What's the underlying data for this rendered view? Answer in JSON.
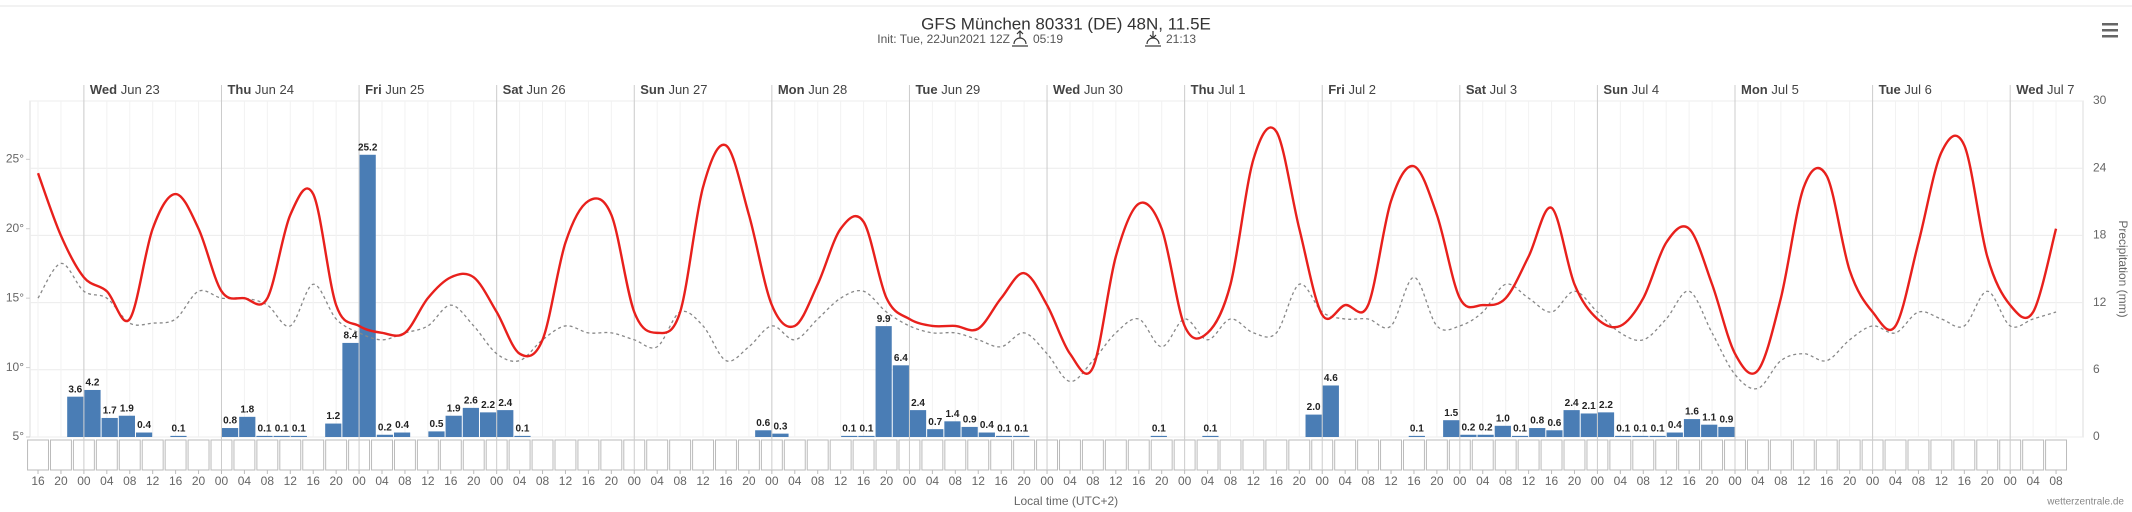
{
  "chart_data": {
    "type": "line",
    "title": "GFS München 80331 (DE) 48N, 11.5E",
    "subtitle": "Init: Tue, 22Jun2021 12Z",
    "sunrise": "05:19",
    "sunset": "21:13",
    "x_label": "Local time (UTC+2)",
    "y2_label": "Precipitation (mm)",
    "credit": "wetterzentrale.de",
    "days": [
      {
        "day": "Wed",
        "date": "Jun 23"
      },
      {
        "day": "Thu",
        "date": "Jun 24"
      },
      {
        "day": "Fri",
        "date": "Jun 25"
      },
      {
        "day": "Sat",
        "date": "Jun 26"
      },
      {
        "day": "Sun",
        "date": "Jun 27"
      },
      {
        "day": "Mon",
        "date": "Jun 28"
      },
      {
        "day": "Tue",
        "date": "Jun 29"
      },
      {
        "day": "Wed",
        "date": "Jun 30"
      },
      {
        "day": "Thu",
        "date": "Jul 1"
      },
      {
        "day": "Fri",
        "date": "Jul 2"
      },
      {
        "day": "Sat",
        "date": "Jul 3"
      },
      {
        "day": "Sun",
        "date": "Jul 4"
      },
      {
        "day": "Mon",
        "date": "Jul 5"
      },
      {
        "day": "Tue",
        "date": "Jul 6"
      },
      {
        "day": "Wed",
        "date": "Jul 7"
      }
    ],
    "xlim": [
      -9.4,
      348.7
    ],
    "xticks": [
      {
        "value": -8,
        "label": "16"
      },
      {
        "value": -4,
        "label": "20"
      },
      {
        "value": 0,
        "label": "00"
      },
      {
        "value": 4,
        "label": "04"
      },
      {
        "value": 8,
        "label": "08"
      },
      {
        "value": 12,
        "label": "12"
      },
      {
        "value": 16,
        "label": "16"
      },
      {
        "value": 20,
        "label": "20"
      },
      {
        "value": 24,
        "label": "00"
      },
      {
        "value": 28,
        "label": "04"
      },
      {
        "value": 32,
        "label": "08"
      },
      {
        "value": 36,
        "label": "12"
      },
      {
        "value": 40,
        "label": "16"
      },
      {
        "value": 44,
        "label": "20"
      },
      {
        "value": 48,
        "label": "00"
      },
      {
        "value": 52,
        "label": "04"
      },
      {
        "value": 56,
        "label": "08"
      },
      {
        "value": 60,
        "label": "12"
      },
      {
        "value": 64,
        "label": "16"
      },
      {
        "value": 68,
        "label": "20"
      },
      {
        "value": 72,
        "label": "00"
      },
      {
        "value": 76,
        "label": "04"
      },
      {
        "value": 80,
        "label": "08"
      },
      {
        "value": 84,
        "label": "12"
      },
      {
        "value": 88,
        "label": "16"
      },
      {
        "value": 92,
        "label": "20"
      },
      {
        "value": 96,
        "label": "00"
      },
      {
        "value": 100,
        "label": "04"
      },
      {
        "value": 104,
        "label": "08"
      },
      {
        "value": 108,
        "label": "12"
      },
      {
        "value": 112,
        "label": "16"
      },
      {
        "value": 116,
        "label": "20"
      },
      {
        "value": 120,
        "label": "00"
      },
      {
        "value": 124,
        "label": "04"
      },
      {
        "value": 128,
        "label": "08"
      },
      {
        "value": 132,
        "label": "12"
      },
      {
        "value": 136,
        "label": "16"
      },
      {
        "value": 140,
        "label": "20"
      },
      {
        "value": 144,
        "label": "00"
      },
      {
        "value": 148,
        "label": "04"
      },
      {
        "value": 152,
        "label": "08"
      },
      {
        "value": 156,
        "label": "12"
      },
      {
        "value": 160,
        "label": "16"
      },
      {
        "value": 164,
        "label": "20"
      },
      {
        "value": 168,
        "label": "00"
      },
      {
        "value": 172,
        "label": "04"
      },
      {
        "value": 176,
        "label": "08"
      },
      {
        "value": 180,
        "label": "12"
      },
      {
        "value": 184,
        "label": "16"
      },
      {
        "value": 188,
        "label": "20"
      },
      {
        "value": 192,
        "label": "00"
      },
      {
        "value": 196,
        "label": "04"
      },
      {
        "value": 200,
        "label": "08"
      },
      {
        "value": 204,
        "label": "12"
      },
      {
        "value": 208,
        "label": "16"
      },
      {
        "value": 212,
        "label": "20"
      },
      {
        "value": 216,
        "label": "00"
      },
      {
        "value": 220,
        "label": "04"
      },
      {
        "value": 224,
        "label": "08"
      },
      {
        "value": 228,
        "label": "12"
      },
      {
        "value": 232,
        "label": "16"
      },
      {
        "value": 236,
        "label": "20"
      },
      {
        "value": 240,
        "label": "00"
      },
      {
        "value": 244,
        "label": "04"
      },
      {
        "value": 248,
        "label": "08"
      },
      {
        "value": 252,
        "label": "12"
      },
      {
        "value": 256,
        "label": "16"
      },
      {
        "value": 260,
        "label": "20"
      },
      {
        "value": 264,
        "label": "00"
      },
      {
        "value": 268,
        "label": "04"
      },
      {
        "value": 272,
        "label": "08"
      },
      {
        "value": 276,
        "label": "12"
      },
      {
        "value": 280,
        "label": "16"
      },
      {
        "value": 284,
        "label": "20"
      },
      {
        "value": 288,
        "label": "00"
      },
      {
        "value": 292,
        "label": "04"
      },
      {
        "value": 296,
        "label": "08"
      },
      {
        "value": 300,
        "label": "12"
      },
      {
        "value": 304,
        "label": "16"
      },
      {
        "value": 308,
        "label": "20"
      },
      {
        "value": 312,
        "label": "00"
      },
      {
        "value": 316,
        "label": "04"
      },
      {
        "value": 320,
        "label": "08"
      },
      {
        "value": 324,
        "label": "12"
      },
      {
        "value": 328,
        "label": "16"
      },
      {
        "value": 332,
        "label": "20"
      },
      {
        "value": 336,
        "label": "00"
      },
      {
        "value": 340,
        "label": "04"
      },
      {
        "value": 344,
        "label": "08"
      }
    ],
    "ylim": [
      5,
      29.2
    ],
    "yticks": [
      {
        "value": 5,
        "label": "5°"
      },
      {
        "value": 10,
        "label": "10°"
      },
      {
        "value": 15,
        "label": "15°"
      },
      {
        "value": 20,
        "label": "20°"
      },
      {
        "value": 25,
        "label": "25°"
      }
    ],
    "y2lim": [
      0,
      30
    ],
    "y2ticks": [
      0,
      6,
      12,
      18,
      24,
      30
    ],
    "grid": true,
    "x": [
      -8,
      -4,
      0,
      4,
      8,
      12,
      16,
      20,
      24,
      28,
      32,
      36,
      40,
      44,
      48,
      52,
      56,
      60,
      64,
      68,
      72,
      76,
      80,
      84,
      88,
      92,
      96,
      100,
      104,
      108,
      112,
      116,
      120,
      124,
      128,
      132,
      136,
      140,
      144,
      148,
      152,
      156,
      160,
      164,
      168,
      172,
      176,
      180,
      184,
      188,
      192,
      196,
      200,
      204,
      208,
      212,
      216,
      220,
      224,
      228,
      232,
      236,
      240,
      244,
      248,
      252,
      256,
      260,
      264,
      268,
      272,
      276,
      280,
      284,
      288,
      292,
      296,
      300,
      304,
      308,
      312,
      316,
      320,
      324,
      328,
      332,
      336,
      340,
      344
    ],
    "series": [
      {
        "type": "line",
        "color": "#e8201c",
        "values": [
          24,
          19.5,
          16.5,
          15.5,
          13.5,
          20,
          22.5,
          20,
          15.5,
          15,
          15,
          21,
          22.5,
          14.5,
          13,
          12.5,
          12.5,
          15,
          16.5,
          16.5,
          14,
          11,
          12,
          19,
          22,
          21,
          14,
          12.5,
          14,
          23,
          26,
          21,
          14.5,
          13,
          16,
          20,
          20.5,
          15,
          13.5,
          13,
          13,
          12.8,
          15,
          16.8,
          14.5,
          11,
          10,
          18,
          21.8,
          20,
          13,
          12.5,
          16,
          25,
          27,
          20,
          13.8,
          14.5,
          14.5,
          22,
          24.5,
          21,
          15,
          14.5,
          15,
          18,
          21.5,
          16,
          13.5,
          13,
          15,
          19,
          20,
          16,
          11,
          9.8,
          15,
          23,
          23.8,
          17,
          14,
          13,
          19,
          25.5,
          26,
          18,
          14.5,
          14,
          20
        ]
      },
      {
        "type": "line",
        "color": "#888888",
        "dashed": true,
        "values": [
          15,
          17.5,
          15.5,
          15,
          13.2,
          13.2,
          13.5,
          15.5,
          15,
          15,
          14.5,
          13,
          16,
          13.5,
          12.5,
          12,
          12.5,
          13,
          14.5,
          13,
          11,
          10.5,
          12,
          13,
          12.5,
          12.5,
          12,
          11.5,
          14,
          13,
          10.5,
          11.5,
          13,
          12,
          13.5,
          15,
          15.5,
          14,
          13,
          12.5,
          12.5,
          12,
          11.5,
          12.5,
          11,
          9,
          10.5,
          12.5,
          13.5,
          11.5,
          13.5,
          12,
          13.5,
          12.5,
          12.5,
          16,
          14,
          13.5,
          13.5,
          13,
          16.5,
          13,
          13,
          14,
          16,
          15,
          14,
          15.5,
          14,
          12.5,
          12,
          13.5,
          15.5,
          12.5,
          9.5,
          8.5,
          10.5,
          11,
          10.5,
          12,
          13,
          12.5,
          14,
          13.5,
          13,
          15.5,
          13,
          13.5,
          14
        ]
      },
      {
        "type": "bar",
        "axis": "y2",
        "color": "#4a7db5",
        "width": 3,
        "x": [
          -1.5,
          1.5,
          4.5,
          7.5,
          10.5,
          16.5,
          25.5,
          28.5,
          31.5,
          34.5,
          37.5,
          43.5,
          46.5,
          49.5,
          52.5,
          55.5,
          61.5,
          64.5,
          67.5,
          70.5,
          73.5,
          76.5,
          118.5,
          121.5,
          133.5,
          136.5,
          139.5,
          142.5,
          145.5,
          148.5,
          151.5,
          154.5,
          157.5,
          160.5,
          163.5,
          187.5,
          196.5,
          214.5,
          217.5,
          232.5,
          238.5,
          241.5,
          244.5,
          247.5,
          250.5,
          253.5,
          256.5,
          259.5,
          262.5,
          265.5,
          268.5,
          271.5,
          274.5,
          277.5,
          280.5,
          283.5,
          286.5
        ],
        "values": [
          3.6,
          4.2,
          1.7,
          1.9,
          0.4,
          0.1,
          0.8,
          1.8,
          0.1,
          0.1,
          0.1,
          1.2,
          8.4,
          25.2,
          0.2,
          0.4,
          0.5,
          1.9,
          2.6,
          2.2,
          2.4,
          0.1,
          0.6,
          0.3,
          0.1,
          0.1,
          9.9,
          6.4,
          2.4,
          0.7,
          1.4,
          0.9,
          0.4,
          0.1,
          0.1,
          0.1,
          0.1,
          2.0,
          4.6,
          0.1,
          1.5,
          0.2,
          0.2,
          1.0,
          0.1,
          0.8,
          0.6,
          2.4,
          2.1,
          2.2,
          0.1,
          0.1,
          0.1,
          0.4,
          1.6,
          1.1,
          0.9
        ],
        "value_labels": [
          "3.6",
          "4.2",
          "1.7",
          "1.9",
          "0.4",
          "0.1",
          "0.8",
          "1.8",
          "0.1",
          "0.1",
          "0.1",
          "1.2",
          "8.4",
          "25.2",
          "0.2",
          "0.4",
          "0.5",
          "1.9",
          "2.6",
          "2.2",
          "2.4",
          "0.1",
          "0.6",
          "0.3",
          "0.1",
          "0.1",
          "9.9",
          "6.4",
          "2.4",
          "0.7",
          "1.4",
          "0.9",
          "0.4",
          "0.1",
          "0.1",
          "0.1",
          "0.1",
          "2.0",
          "4.6",
          "0.1",
          "1.5",
          "0.2",
          "0.2",
          "1.0",
          "0.1",
          "0.8",
          "0.6",
          "2.4",
          "2.1",
          "2.2",
          "0.1",
          "0.1",
          "0.1",
          "0.4",
          "1.6",
          "1.1",
          "0.9"
        ]
      }
    ]
  }
}
